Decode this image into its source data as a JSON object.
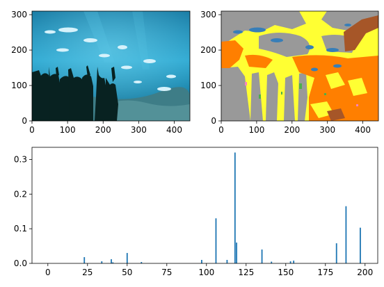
{
  "figure": {
    "panels": [
      "aquarium-photo",
      "segmentation-map",
      "histogram"
    ]
  },
  "photo": {
    "xticks": [
      0,
      100,
      200,
      300,
      400
    ],
    "yticks": [
      0,
      100,
      200,
      300
    ],
    "xlim": [
      0,
      444
    ],
    "ylim": [
      310,
      0
    ],
    "colors": {
      "water_light": "#2fa9d2",
      "water_mid": "#1e86ad",
      "water_deep": "#0d4c6c",
      "reef": "#3e7d87",
      "silhouette": "#082221",
      "fish": "#d6f2fb"
    }
  },
  "segmentation": {
    "xticks": [
      0,
      100,
      200,
      300,
      400
    ],
    "yticks": [
      0,
      100,
      200,
      300
    ],
    "xlim": [
      0,
      444
    ],
    "ylim": [
      310,
      0
    ],
    "colors": {
      "gray": "#999999",
      "yellow": "#ffff33",
      "orange": "#ff7f00",
      "blue": "#377eb8",
      "brown": "#a65628",
      "green": "#4daf4a",
      "pink": "#f781bf"
    }
  },
  "chart_data": {
    "type": "bar",
    "title": "",
    "xlabel": "",
    "ylabel": "",
    "xlim": [
      -10,
      208
    ],
    "ylim": [
      0,
      0.335
    ],
    "xticks": [
      0,
      25,
      50,
      75,
      100,
      125,
      150,
      175,
      200
    ],
    "yticks": [
      "0.0",
      "0.1",
      "0.2",
      "0.3"
    ],
    "bar_color": "#1f77b4",
    "x": [
      23,
      34,
      40,
      41,
      50,
      59,
      97,
      106,
      113,
      118,
      119,
      135,
      141,
      153,
      155,
      182,
      188,
      197
    ],
    "values": [
      0.018,
      0.006,
      0.012,
      0.003,
      0.03,
      0.004,
      0.01,
      0.13,
      0.01,
      0.32,
      0.06,
      0.04,
      0.005,
      0.006,
      0.008,
      0.058,
      0.165,
      0.103
    ]
  }
}
